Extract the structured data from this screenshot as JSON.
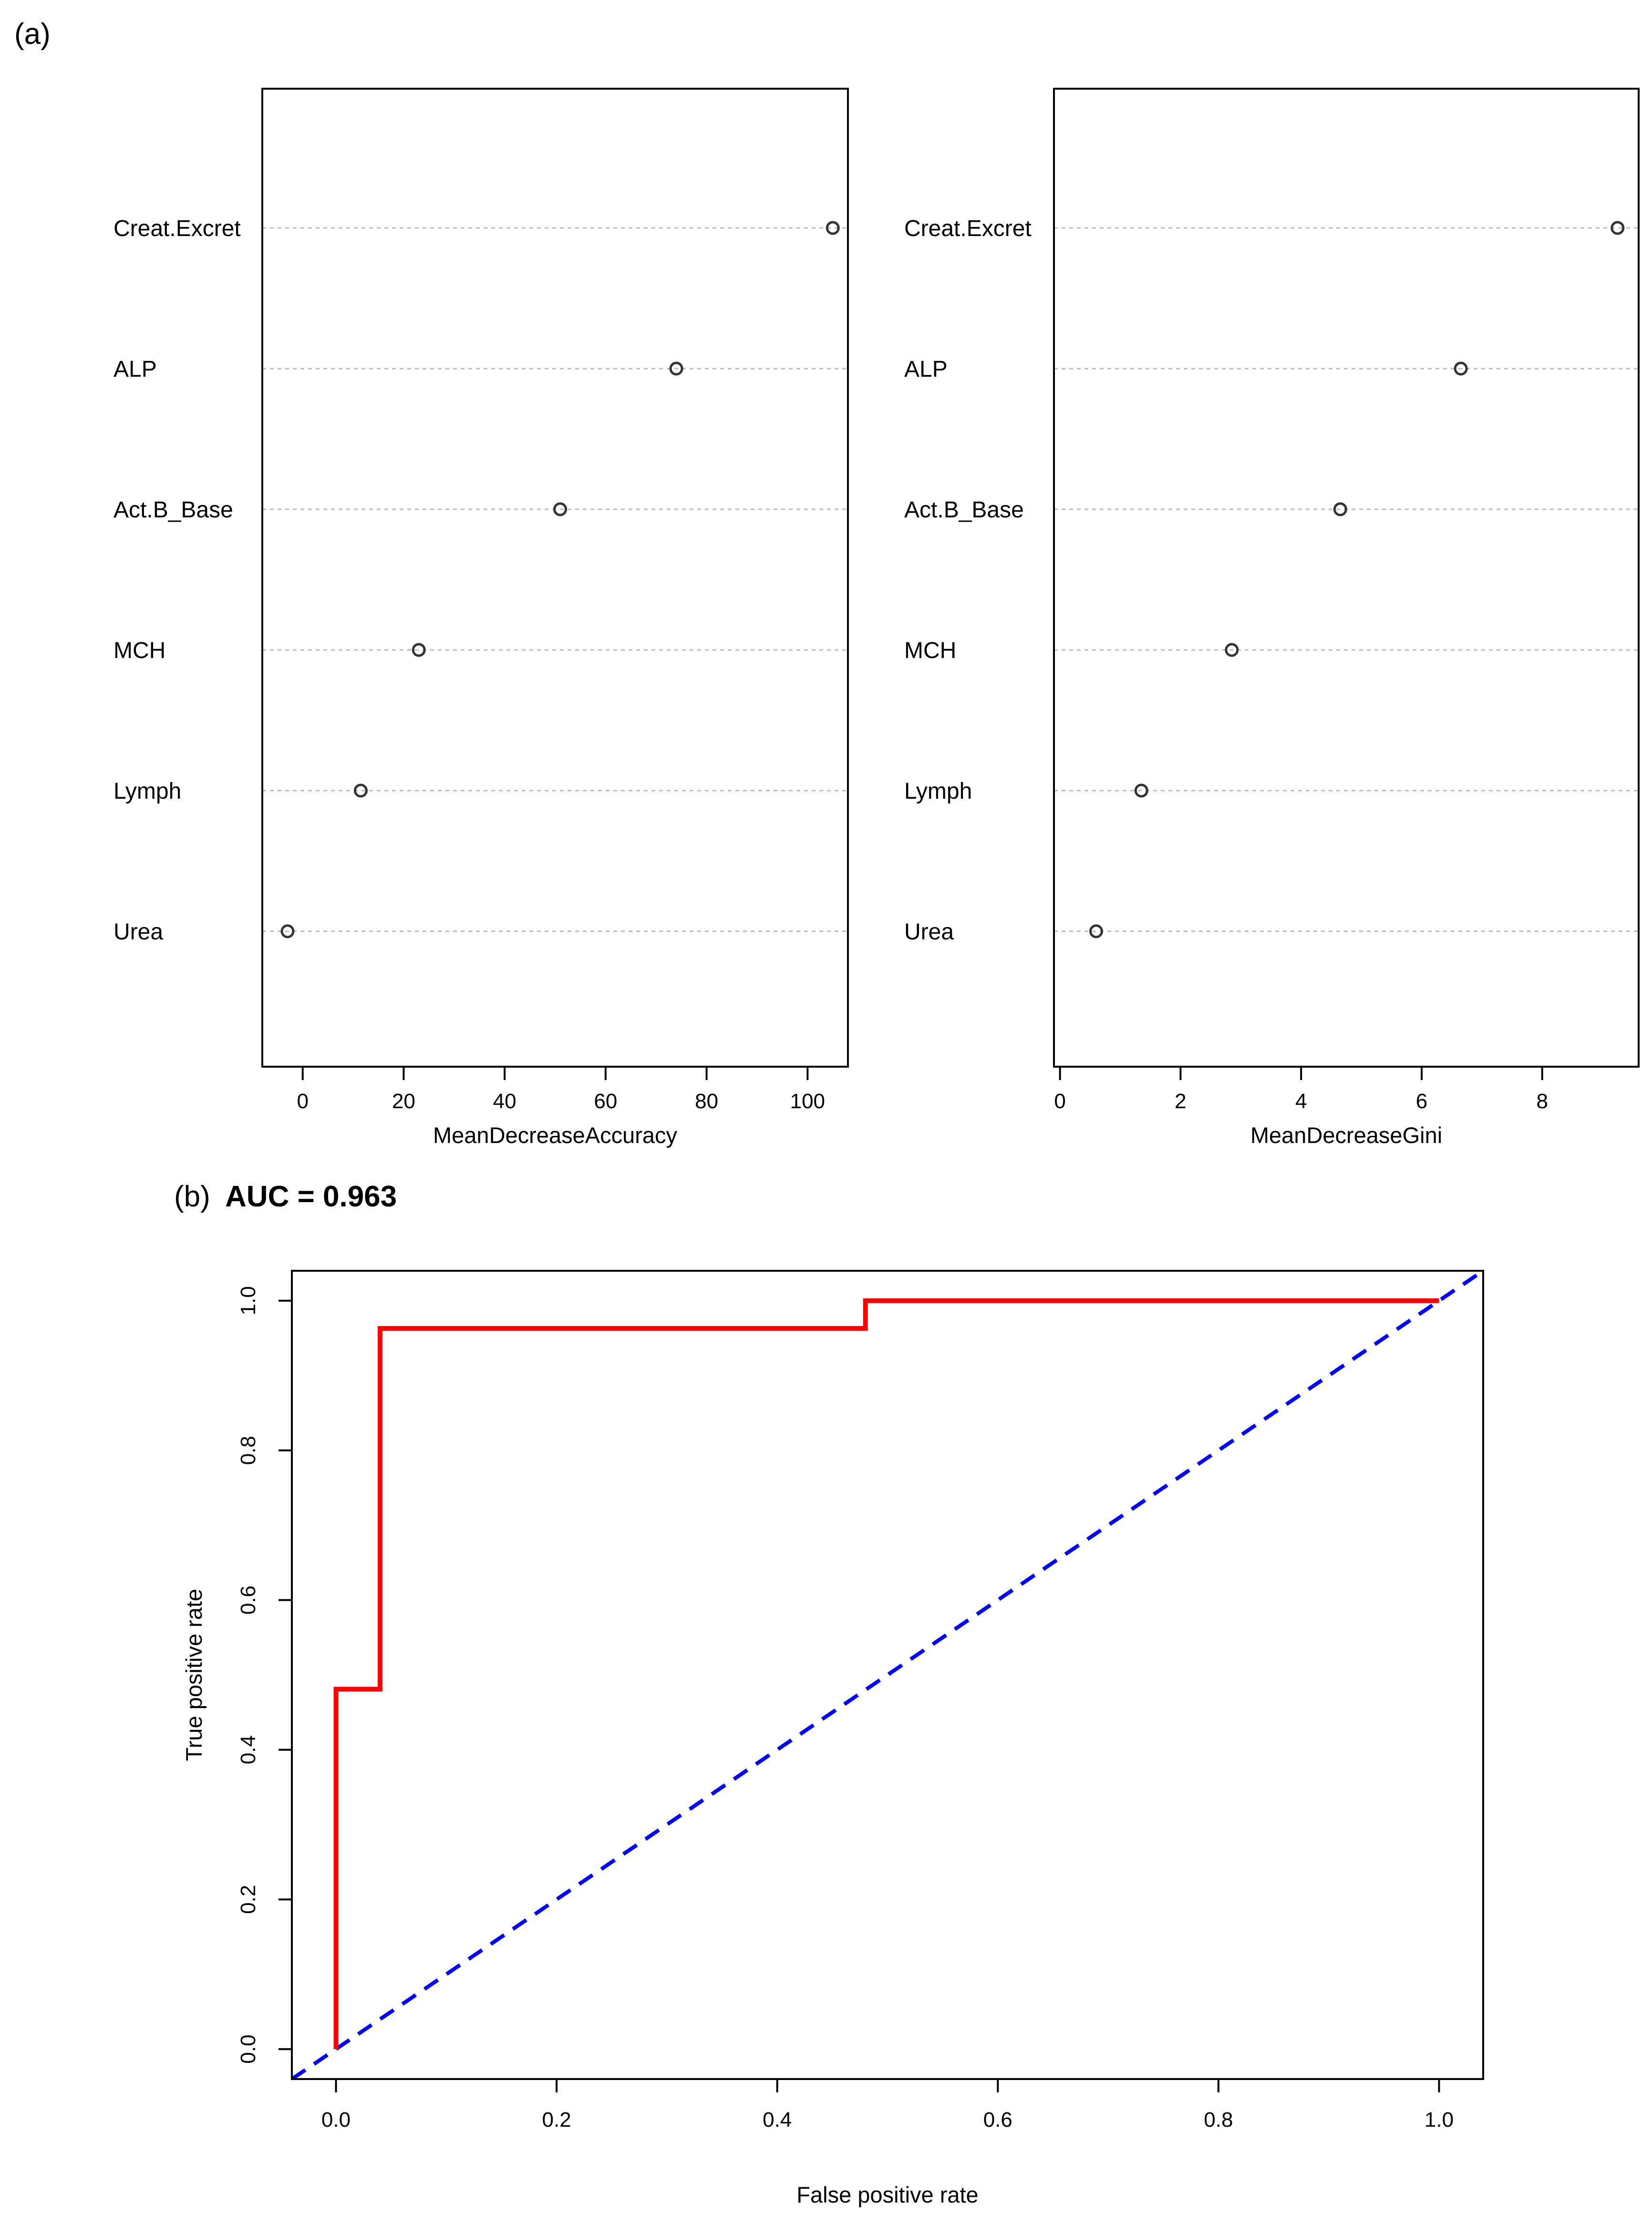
{
  "panel_a_label": "(a)",
  "panel_b_label": "(b)",
  "panel_b_title": "AUC = 0.963",
  "chart_data": [
    {
      "type": "scatter",
      "subtype": "dotchart",
      "categories": [
        "Creat.Excret",
        "ALP",
        "Act.B_Base",
        "MCH",
        "Lymph",
        "Urea"
      ],
      "values": [
        105,
        74,
        51,
        23,
        11.5,
        -3
      ],
      "xlabel": "MeanDecreaseAccuracy",
      "ylabel": "",
      "xlim": [
        -8,
        108
      ],
      "xticks": [
        0,
        20,
        40,
        60,
        80,
        100
      ],
      "grid": "dotted horizontal",
      "marker_color": "#333333",
      "grid_color": "#bbbbbb"
    },
    {
      "type": "scatter",
      "subtype": "dotchart",
      "categories": [
        "Creat.Excret",
        "ALP",
        "Act.B_Base",
        "MCH",
        "Lymph",
        "Urea"
      ],
      "values": [
        9.25,
        6.65,
        4.65,
        2.85,
        1.35,
        0.6
      ],
      "xlabel": "MeanDecreaseGini",
      "ylabel": "",
      "xlim": [
        -0.1,
        9.6
      ],
      "xticks": [
        0,
        2,
        4,
        6,
        8
      ],
      "grid": "dotted horizontal",
      "marker_color": "#333333",
      "grid_color": "#bbbbbb"
    },
    {
      "type": "line",
      "title": "AUC = 0.963",
      "xlabel": "False positive rate",
      "ylabel": "True positive rate",
      "xlim": [
        -0.04,
        1.04
      ],
      "ylim": [
        -0.04,
        1.04
      ],
      "xticks": [
        "0.0",
        "0.2",
        "0.4",
        "0.6",
        "0.8",
        "1.0"
      ],
      "yticks": [
        "0.0",
        "0.2",
        "0.4",
        "0.6",
        "0.8",
        "1.0"
      ],
      "series": [
        {
          "style": "solid",
          "color": "#ff0000",
          "x": [
            0,
            0,
            0.04,
            0.04,
            0.48,
            0.48,
            1.0
          ],
          "y": [
            0,
            0.481,
            0.481,
            0.963,
            0.963,
            1.0,
            1.0
          ]
        },
        {
          "style": "dashed",
          "color": "#0000ff",
          "x": [
            -0.04,
            1.04
          ],
          "y": [
            -0.04,
            1.04
          ]
        }
      ]
    }
  ]
}
